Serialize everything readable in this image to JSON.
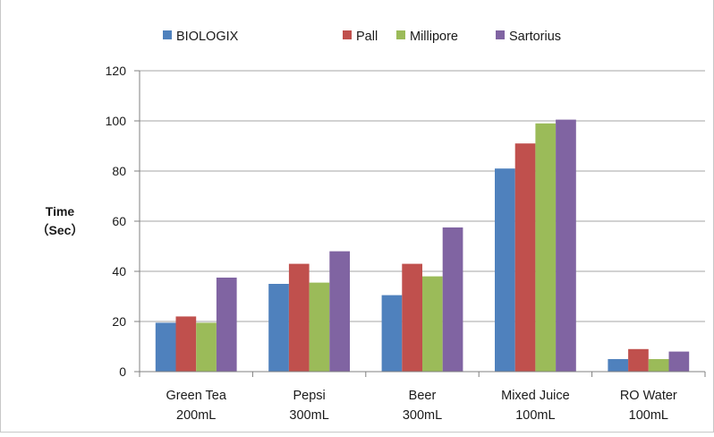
{
  "chart_data": {
    "type": "bar",
    "title": "",
    "xlabel": "",
    "ylabel_line1": "Time",
    "ylabel_line2": "（Sec）",
    "ylim": [
      0,
      120
    ],
    "yticks": [
      "0",
      "20",
      "40",
      "60",
      "80",
      "100",
      "120"
    ],
    "grid": true,
    "legend_position": "top",
    "categories": [
      [
        "Green Tea",
        "200mL"
      ],
      [
        "Pepsi",
        "300mL"
      ],
      [
        "Beer",
        "300mL"
      ],
      [
        "Mixed Juice",
        "100mL"
      ],
      [
        "RO Water",
        "100mL"
      ]
    ],
    "series": [
      {
        "name": "BIOLOGIX",
        "color": "#4f81bd",
        "values": [
          19.5,
          35,
          30.5,
          81,
          5
        ]
      },
      {
        "name": "Pall",
        "color": "#c0504d",
        "values": [
          22,
          43,
          43,
          91,
          9
        ]
      },
      {
        "name": "Millipore",
        "color": "#9bbb59",
        "values": [
          19.5,
          35.5,
          38,
          99,
          5
        ]
      },
      {
        "name": "Sartorius",
        "color": "#8064a2",
        "values": [
          37.5,
          48,
          57.5,
          100.5,
          8
        ]
      }
    ]
  }
}
